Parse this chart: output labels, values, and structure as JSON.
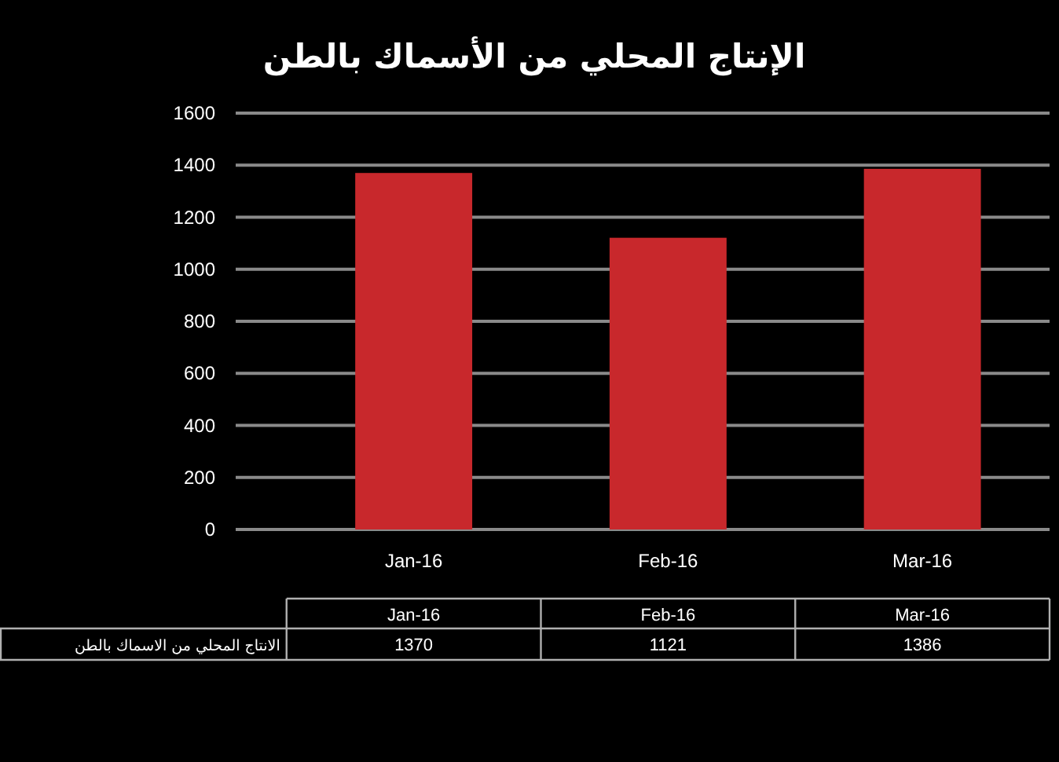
{
  "chart_data": {
    "type": "bar",
    "title": "الإنتاج المحلي من الأسماك بالطن",
    "categories": [
      "Jan-16",
      "Feb-16",
      "Mar-16"
    ],
    "series": [
      {
        "name": "الانتاج المحلي من الاسماك بالطن",
        "color": "#c8282c",
        "values": [
          1370,
          1121,
          1386
        ]
      }
    ],
    "ylim": [
      0,
      1600
    ],
    "yticks": [
      0,
      200,
      400,
      600,
      800,
      1000,
      1200,
      1400,
      1600
    ],
    "grid": "y",
    "data_labels": true
  }
}
